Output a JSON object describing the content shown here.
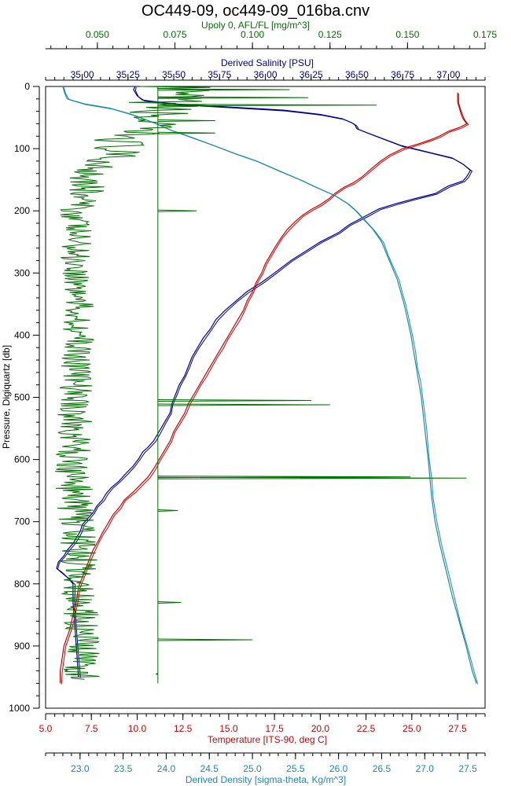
{
  "chart_data": {
    "type": "line",
    "title": "OC449-09, oc449-09_016ba.cnv",
    "grid": false,
    "legend": "none",
    "y_axis": {
      "label": "Pressure, Digiquartz [db]",
      "range": [
        0,
        1000
      ],
      "inverted": true,
      "ticks": [
        0,
        100,
        200,
        300,
        400,
        500,
        600,
        700,
        800,
        900,
        1000
      ],
      "tick_labels": [
        "0",
        "100",
        "200",
        "300",
        "400",
        "500",
        "600",
        "700",
        "800",
        "900",
        "1000"
      ]
    },
    "x_axes": [
      {
        "id": "fluorescence",
        "label": "Upoly 0, AFL/FL [mg/m^3]",
        "position": "top-outer",
        "color": "#007000",
        "range": [
          0.0333,
          0.175
        ],
        "ticks": [
          0.05,
          0.075,
          0.1,
          0.125,
          0.15,
          0.175
        ],
        "tick_labels": [
          "0.050",
          "0.075",
          "0.100",
          "0.125",
          "0.150",
          "0.175"
        ]
      },
      {
        "id": "salinity",
        "label": "Derived Salinity [PSU]",
        "position": "top-inner",
        "color": "#00008c",
        "range": [
          34.8,
          37.2
        ],
        "ticks": [
          35.0,
          35.25,
          35.5,
          35.75,
          36.0,
          36.25,
          36.5,
          36.75,
          37.0
        ],
        "tick_labels": [
          "35.00",
          "35.25",
          "35.50",
          "35.75",
          "36.00",
          "36.25",
          "36.50",
          "36.75",
          "37.00"
        ]
      },
      {
        "id": "temperature",
        "label": "Temperature [ITS-90, deg C]",
        "position": "bottom-inner",
        "color": "#cc0000",
        "range": [
          5.0,
          29.0
        ],
        "ticks": [
          5.0,
          7.5,
          10.0,
          12.5,
          15.0,
          17.5,
          20.0,
          22.5,
          25.0,
          27.5
        ],
        "tick_labels": [
          "5.0",
          "7.5",
          "10.0",
          "12.5",
          "15.0",
          "17.5",
          "20.0",
          "22.5",
          "25.0",
          "27.5"
        ]
      },
      {
        "id": "density",
        "label": "Derived Density [sigma-theta, Kg/m^3]",
        "position": "bottom-outer",
        "color": "#1a8aaa",
        "range": [
          22.6,
          27.7
        ],
        "ticks": [
          23.0,
          23.5,
          24.0,
          24.5,
          25.0,
          25.5,
          26.0,
          26.5,
          27.0,
          27.5
        ],
        "tick_labels": [
          "23.0",
          "23.5",
          "24.0",
          "24.5",
          "25.0",
          "25.5",
          "26.0",
          "26.5",
          "27.0",
          "27.5"
        ]
      }
    ],
    "series": [
      {
        "axis": "salinity",
        "color": "#00008c",
        "points": [
          [
            35.29,
            0
          ],
          [
            35.28,
            5
          ],
          [
            35.3,
            15
          ],
          [
            35.33,
            22
          ],
          [
            35.5,
            28
          ],
          [
            35.8,
            33
          ],
          [
            36.1,
            38
          ],
          [
            36.3,
            45
          ],
          [
            36.42,
            52
          ],
          [
            36.47,
            58
          ],
          [
            36.49,
            62
          ],
          [
            36.5,
            68
          ],
          [
            36.56,
            75
          ],
          [
            36.65,
            85
          ],
          [
            36.74,
            95
          ],
          [
            36.88,
            105
          ],
          [
            37.02,
            115
          ],
          [
            37.08,
            125
          ],
          [
            37.12,
            135
          ],
          [
            37.1,
            145
          ],
          [
            37.08,
            152
          ],
          [
            37.0,
            160
          ],
          [
            36.97,
            165
          ],
          [
            36.93,
            172
          ],
          [
            36.82,
            180
          ],
          [
            36.72,
            188
          ],
          [
            36.62,
            197
          ],
          [
            36.55,
            208
          ],
          [
            36.46,
            222
          ],
          [
            36.4,
            235
          ],
          [
            36.3,
            250
          ],
          [
            36.22,
            265
          ],
          [
            36.14,
            280
          ],
          [
            36.05,
            300
          ],
          [
            35.98,
            315
          ],
          [
            35.9,
            330
          ],
          [
            35.84,
            345
          ],
          [
            35.78,
            360
          ],
          [
            35.73,
            375
          ],
          [
            35.7,
            390
          ],
          [
            35.66,
            405
          ],
          [
            35.63,
            420
          ],
          [
            35.6,
            435
          ],
          [
            35.58,
            450
          ],
          [
            35.56,
            465
          ],
          [
            35.53,
            480
          ],
          [
            35.51,
            495
          ],
          [
            35.49,
            510
          ],
          [
            35.48,
            525
          ],
          [
            35.45,
            540
          ],
          [
            35.42,
            555
          ],
          [
            35.39,
            570
          ],
          [
            35.36,
            580
          ],
          [
            35.33,
            588
          ],
          [
            35.31,
            598
          ],
          [
            35.28,
            610
          ],
          [
            35.24,
            622
          ],
          [
            35.2,
            635
          ],
          [
            35.16,
            645
          ],
          [
            35.13,
            655
          ],
          [
            35.11,
            665
          ],
          [
            35.08,
            675
          ],
          [
            35.06,
            685
          ],
          [
            35.03,
            695
          ],
          [
            35.0,
            705
          ],
          [
            34.99,
            715
          ],
          [
            34.97,
            725
          ],
          [
            34.95,
            735
          ],
          [
            34.92,
            745
          ],
          [
            34.9,
            755
          ],
          [
            34.87,
            765
          ],
          [
            34.86,
            775
          ],
          [
            34.88,
            780
          ],
          [
            34.92,
            790
          ],
          [
            34.95,
            800
          ],
          [
            34.95,
            830
          ],
          [
            34.96,
            870
          ],
          [
            34.97,
            910
          ],
          [
            34.98,
            950
          ]
        ]
      },
      {
        "axis": "temperature",
        "color": "#cc0000",
        "points": [
          [
            27.5,
            10
          ],
          [
            27.5,
            25
          ],
          [
            27.6,
            35
          ],
          [
            27.7,
            45
          ],
          [
            27.8,
            52
          ],
          [
            28.0,
            60
          ],
          [
            27.6,
            66
          ],
          [
            27.0,
            72
          ],
          [
            26.5,
            80
          ],
          [
            26.0,
            86
          ],
          [
            25.4,
            92
          ],
          [
            24.5,
            100
          ],
          [
            23.8,
            110
          ],
          [
            23.3,
            120
          ],
          [
            22.8,
            132
          ],
          [
            22.3,
            145
          ],
          [
            21.8,
            155
          ],
          [
            21.3,
            162
          ],
          [
            20.8,
            172
          ],
          [
            20.5,
            180
          ],
          [
            20.0,
            190
          ],
          [
            19.5,
            198
          ],
          [
            19.0,
            208
          ],
          [
            18.6,
            218
          ],
          [
            18.2,
            230
          ],
          [
            17.9,
            242
          ],
          [
            17.6,
            255
          ],
          [
            17.3,
            270
          ],
          [
            17.0,
            285
          ],
          [
            16.8,
            300
          ],
          [
            16.5,
            315
          ],
          [
            16.3,
            330
          ],
          [
            16.0,
            345
          ],
          [
            15.8,
            360
          ],
          [
            15.5,
            375
          ],
          [
            15.2,
            390
          ],
          [
            14.9,
            405
          ],
          [
            14.6,
            420
          ],
          [
            14.3,
            435
          ],
          [
            14.0,
            450
          ],
          [
            13.7,
            465
          ],
          [
            13.4,
            480
          ],
          [
            13.1,
            495
          ],
          [
            12.8,
            510
          ],
          [
            12.6,
            525
          ],
          [
            12.3,
            540
          ],
          [
            12.0,
            555
          ],
          [
            11.8,
            570
          ],
          [
            11.5,
            585
          ],
          [
            11.2,
            600
          ],
          [
            10.9,
            615
          ],
          [
            10.6,
            628
          ],
          [
            10.2,
            640
          ],
          [
            9.8,
            652
          ],
          [
            9.3,
            665
          ],
          [
            9.0,
            678
          ],
          [
            8.7,
            688
          ],
          [
            8.5,
            698
          ],
          [
            8.3,
            708
          ],
          [
            8.1,
            718
          ],
          [
            7.9,
            730
          ],
          [
            7.6,
            745
          ],
          [
            7.4,
            760
          ],
          [
            7.2,
            775
          ],
          [
            7.0,
            790
          ],
          [
            6.8,
            805
          ],
          [
            6.7,
            825
          ],
          [
            6.5,
            850
          ],
          [
            6.3,
            875
          ],
          [
            6.0,
            900
          ],
          [
            5.9,
            920
          ],
          [
            5.8,
            940
          ],
          [
            5.8,
            960
          ]
        ]
      },
      {
        "axis": "density",
        "color": "#1a8aaa",
        "points": [
          [
            22.8,
            0
          ],
          [
            22.82,
            10
          ],
          [
            22.85,
            20
          ],
          [
            23.05,
            28
          ],
          [
            23.35,
            35
          ],
          [
            23.6,
            45
          ],
          [
            23.85,
            58
          ],
          [
            24.05,
            70
          ],
          [
            24.3,
            82
          ],
          [
            24.55,
            95
          ],
          [
            24.8,
            108
          ],
          [
            25.05,
            120
          ],
          [
            25.3,
            135
          ],
          [
            25.55,
            150
          ],
          [
            25.75,
            163
          ],
          [
            25.95,
            175
          ],
          [
            26.1,
            188
          ],
          [
            26.2,
            200
          ],
          [
            26.3,
            215
          ],
          [
            26.4,
            230
          ],
          [
            26.5,
            250
          ],
          [
            26.56,
            270
          ],
          [
            26.62,
            290
          ],
          [
            26.68,
            310
          ],
          [
            26.72,
            330
          ],
          [
            26.76,
            350
          ],
          [
            26.8,
            375
          ],
          [
            26.84,
            400
          ],
          [
            26.87,
            425
          ],
          [
            26.9,
            450
          ],
          [
            26.93,
            475
          ],
          [
            26.96,
            500
          ],
          [
            26.98,
            525
          ],
          [
            27.0,
            550
          ],
          [
            27.02,
            575
          ],
          [
            27.04,
            600
          ],
          [
            27.06,
            630
          ],
          [
            27.08,
            660
          ],
          [
            27.12,
            700
          ],
          [
            27.18,
            740
          ],
          [
            27.25,
            780
          ],
          [
            27.32,
            820
          ],
          [
            27.4,
            860
          ],
          [
            27.48,
            900
          ],
          [
            27.55,
            940
          ],
          [
            27.6,
            960
          ]
        ]
      },
      {
        "axis": "fluorescence",
        "color": "#007000",
        "baseline": 0.0695,
        "noise": [
          [
            0,
            0.075,
            0.012
          ],
          [
            40,
            0.07,
            0.012
          ],
          [
            80,
            0.06,
            0.01
          ],
          [
            130,
            0.05,
            0.008
          ],
          [
            200,
            0.043,
            0.005
          ],
          [
            400,
            0.044,
            0.005
          ],
          [
            600,
            0.042,
            0.006
          ],
          [
            760,
            0.044,
            0.006
          ],
          [
            950,
            0.045,
            0.006
          ]
        ],
        "spikes": [
          [
            5,
            0.112
          ],
          [
            18,
            0.118
          ],
          [
            30,
            0.14
          ],
          [
            55,
            0.088
          ],
          [
            75,
            0.088
          ],
          [
            200,
            0.082
          ],
          [
            505,
            0.119
          ],
          [
            512,
            0.125
          ],
          [
            628,
            0.151
          ],
          [
            630,
            0.169
          ],
          [
            682,
            0.076
          ],
          [
            830,
            0.077
          ],
          [
            890,
            0.1
          ],
          [
            945,
            0.069
          ]
        ]
      }
    ]
  }
}
